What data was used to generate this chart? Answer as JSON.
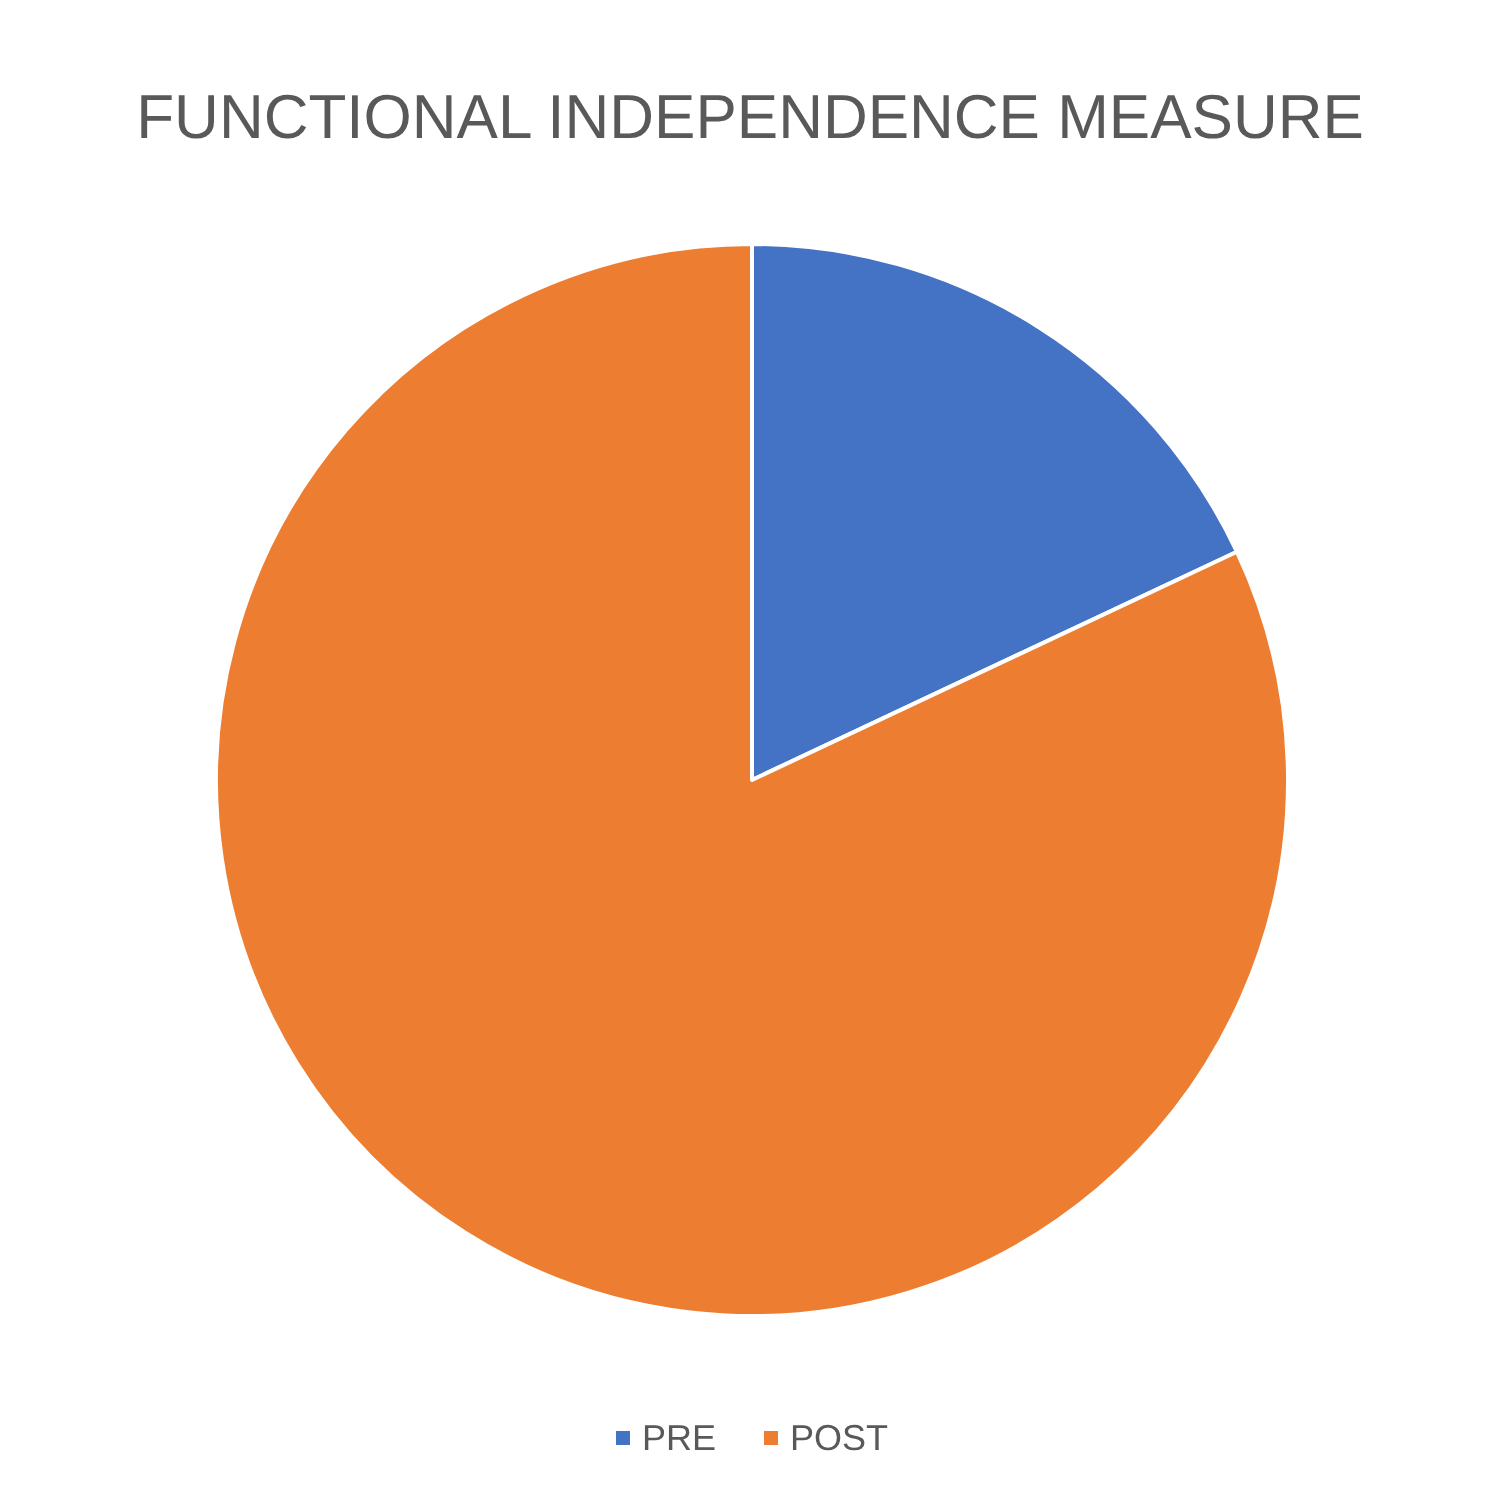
{
  "chart_data": {
    "type": "pie",
    "title": "FUNCTIONAL INDEPENDENCE MEASURE",
    "categories": [
      "PRE",
      "POST"
    ],
    "values": [
      18,
      82
    ],
    "colors": [
      "#4472c4",
      "#ed7d31"
    ],
    "legend": "bottom"
  }
}
